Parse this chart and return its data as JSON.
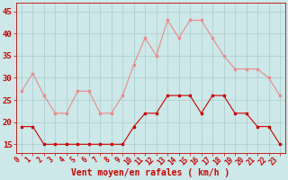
{
  "x": [
    0,
    1,
    2,
    3,
    4,
    5,
    6,
    7,
    8,
    9,
    10,
    11,
    12,
    13,
    14,
    15,
    16,
    17,
    18,
    19,
    20,
    21,
    22,
    23
  ],
  "wind_avg": [
    19,
    19,
    15,
    15,
    15,
    15,
    15,
    15,
    15,
    15,
    19,
    22,
    22,
    26,
    26,
    26,
    22,
    26,
    26,
    22,
    22,
    19,
    19,
    15
  ],
  "wind_gust": [
    27,
    31,
    26,
    22,
    22,
    27,
    27,
    22,
    22,
    26,
    33,
    39,
    35,
    43,
    39,
    43,
    43,
    39,
    35,
    32,
    32,
    32,
    30,
    26
  ],
  "bg_color": "#cce8e8",
  "grid_color": "#aacccc",
  "line_avg_color": "#cc0000",
  "line_gust_color": "#ee8888",
  "marker": "s",
  "markersize": 2.0,
  "linewidth": 0.8,
  "xlabel": "Vent moyen/en rafales ( km/h )",
  "xlabel_color": "#cc0000",
  "xlabel_fontsize": 7,
  "ylabel_ticks": [
    15,
    20,
    25,
    30,
    35,
    40,
    45
  ],
  "ytick_fontsize": 6.5,
  "xtick_fontsize": 5.5,
  "ylim": [
    13,
    47
  ],
  "xlim": [
    -0.5,
    23.5
  ]
}
